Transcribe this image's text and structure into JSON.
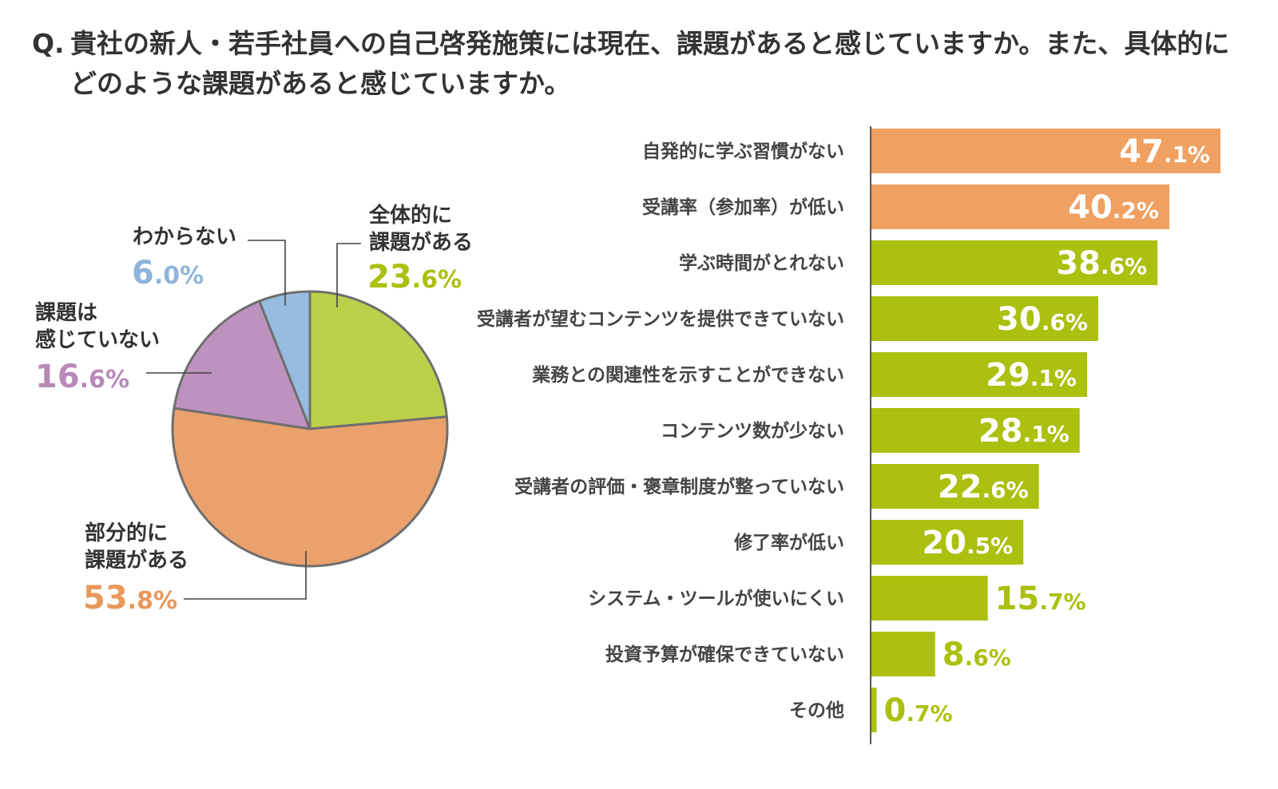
{
  "question": {
    "prefix": "Q.",
    "text": "貴社の新人・若手社員への自己啓発施策には現在、課題があると感じていますか。また、具体的にどのような課題があると感じていますか。"
  },
  "colors": {
    "orange": "#F0A060",
    "green": "#ABC00F",
    "pie_green": "#BDD04A",
    "pie_orange": "#EBA16C",
    "pie_purple": "#BE92BE",
    "pie_blue": "#98BCDF",
    "text": "#333333",
    "line": "#444444"
  },
  "chart_data": [
    {
      "type": "pie",
      "start_angle_deg": 0,
      "direction": "clockwise",
      "slices": [
        {
          "label_lines": [
            "全体的に",
            "課題がある"
          ],
          "value": 23.6,
          "value_int": "23",
          "value_dec": ".6%",
          "color": "#BDD04A",
          "value_color": "#ABC00F"
        },
        {
          "label_lines": [
            "部分的に",
            "課題がある"
          ],
          "value": 53.8,
          "value_int": "53",
          "value_dec": ".8%",
          "color": "#EBA16C",
          "value_color": "#E9975A"
        },
        {
          "label_lines": [
            "課題は",
            "感じていない"
          ],
          "value": 16.6,
          "value_int": "16",
          "value_dec": ".6%",
          "color": "#BE92BE",
          "value_color": "#B88AB8"
        },
        {
          "label_lines": [
            "わからない"
          ],
          "value": 6.0,
          "value_int": "6",
          "value_dec": ".0%",
          "color": "#98BCDF",
          "value_color": "#8FB5DC"
        }
      ]
    },
    {
      "type": "bar",
      "orientation": "horizontal",
      "xlim": [
        0,
        47.1
      ],
      "categories": [
        "自発的に学ぶ習慣がない",
        "受講率（参加率）が低い",
        "学ぶ時間がとれない",
        "受講者が望むコンテンツを提供できていない",
        "業務との関連性を示すことができない",
        "コンテンツ数が少ない",
        "受講者の評価・褒章制度が整っていない",
        "修了率が低い",
        "システム・ツールが使いにくい",
        "投資予算が確保できていない",
        "その他"
      ],
      "values": [
        47.1,
        40.2,
        38.6,
        30.6,
        29.1,
        28.1,
        22.6,
        20.5,
        15.7,
        8.6,
        0.7
      ],
      "value_int": [
        "47",
        "40",
        "38",
        "30",
        "29",
        "28",
        "22",
        "20",
        "15",
        "8",
        "0"
      ],
      "value_dec": [
        ".1%",
        ".2%",
        ".6%",
        ".6%",
        ".1%",
        ".1%",
        ".6%",
        ".5%",
        ".7%",
        ".6%",
        ".7%"
      ],
      "bar_colors": [
        "#F0A060",
        "#F0A060",
        "#ABC00F",
        "#ABC00F",
        "#ABC00F",
        "#ABC00F",
        "#ABC00F",
        "#ABC00F",
        "#ABC00F",
        "#ABC00F",
        "#ABC00F"
      ]
    }
  ]
}
